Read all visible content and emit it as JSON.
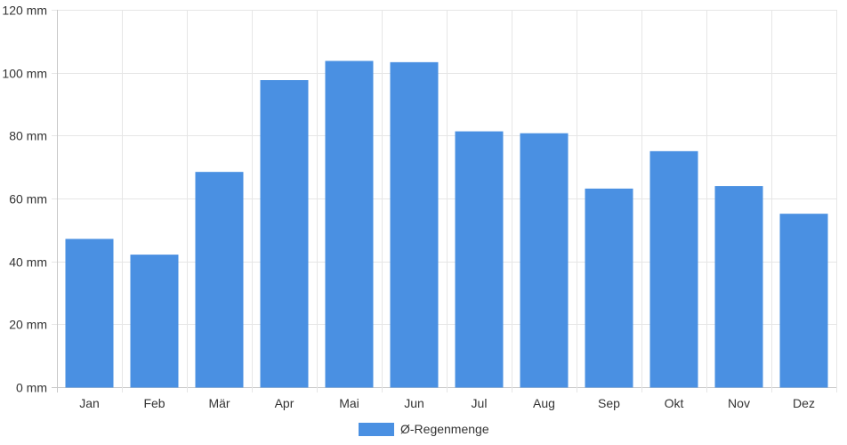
{
  "chart_data": {
    "type": "bar",
    "categories": [
      "Jan",
      "Feb",
      "Mär",
      "Apr",
      "Mai",
      "Jun",
      "Jul",
      "Aug",
      "Sep",
      "Okt",
      "Nov",
      "Dez"
    ],
    "series": [
      {
        "name": "Ø-Regenmenge",
        "color": "#4a90e2",
        "values": [
          47,
          42,
          68.3,
          97.5,
          103.6,
          103.2,
          81.2,
          80.6,
          63,
          74.9,
          63.8,
          55
        ]
      }
    ],
    "ylim": [
      0,
      120
    ],
    "yticks": [
      {
        "value": 0,
        "label": "0 mm"
      },
      {
        "value": 20,
        "label": "20 mm"
      },
      {
        "value": 40,
        "label": "40 mm"
      },
      {
        "value": 60,
        "label": "60 mm"
      },
      {
        "value": 80,
        "label": "80 mm"
      },
      {
        "value": 100,
        "label": "100 mm"
      },
      {
        "value": 120,
        "label": "120 mm"
      }
    ],
    "grid": true,
    "legend_position": "bottom-center"
  }
}
